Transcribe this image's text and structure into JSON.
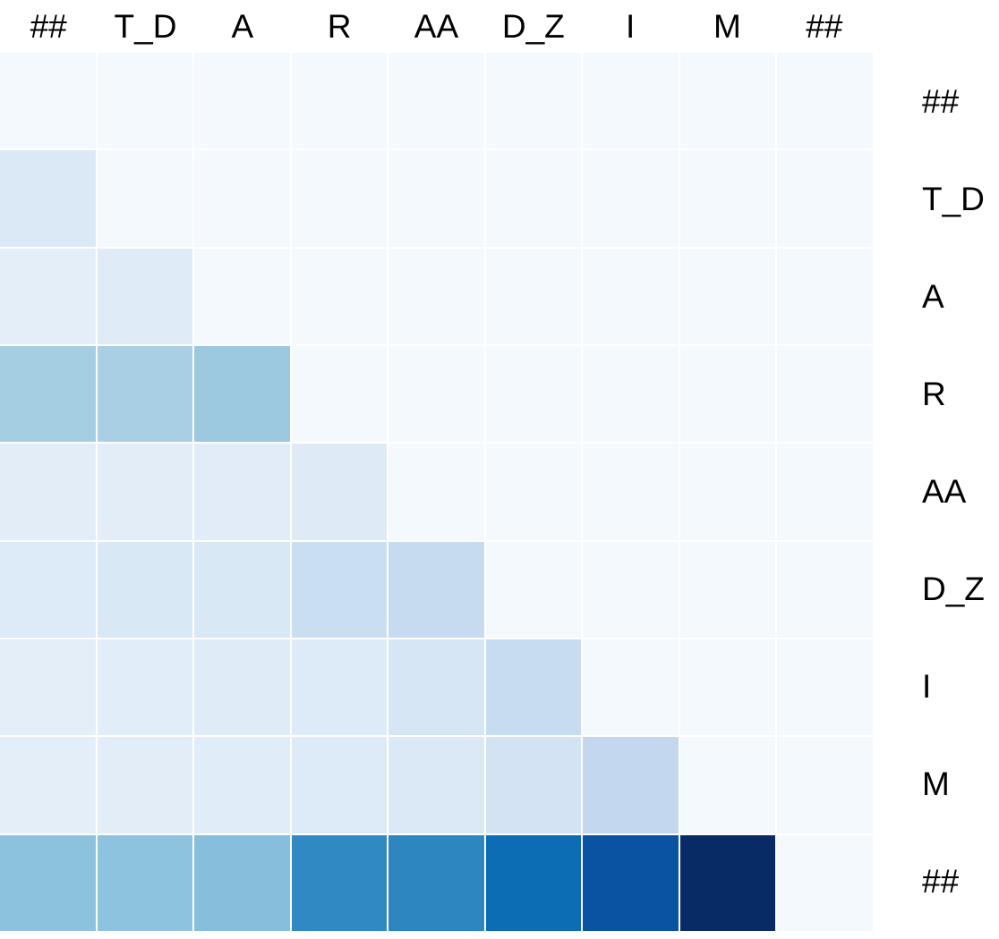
{
  "chart_data": {
    "type": "heatmap",
    "title": "",
    "xlabel": "",
    "ylabel": "",
    "colormap": "Blues",
    "value_range": [
      0,
      1
    ],
    "grid_line_color": "#ffffff",
    "background_color": "#ffffff",
    "label_text_color": "#000000",
    "x_labels": [
      "##",
      "T_D",
      "A",
      "R",
      "AA",
      "D_Z",
      "I",
      "M",
      "##"
    ],
    "y_labels": [
      "##",
      "T_D",
      "A",
      "R",
      "AA",
      "D_Z",
      "I",
      "M",
      "##"
    ],
    "rows": [
      {
        "label": "##",
        "values": [
          0.02,
          0.02,
          0.02,
          0.02,
          0.02,
          0.02,
          0.02,
          0.02,
          0.02
        ],
        "colors": [
          "#f4f9fe",
          "#f4f9fe",
          "#f4f9fe",
          "#f4f9fe",
          "#f4f9fe",
          "#f4f9fe",
          "#f4f9fe",
          "#f4f9fe",
          "#f4f9fe"
        ]
      },
      {
        "label": "T_D",
        "values": [
          0.13,
          0.02,
          0.02,
          0.02,
          0.02,
          0.02,
          0.02,
          0.02,
          0.02
        ],
        "colors": [
          "#dbe9f6",
          "#f4f9fe",
          "#f4f9fe",
          "#f4f9fe",
          "#f4f9fe",
          "#f4f9fe",
          "#f4f9fe",
          "#f4f9fe",
          "#f4f9fe"
        ]
      },
      {
        "label": "A",
        "values": [
          0.08,
          0.11,
          0.02,
          0.02,
          0.02,
          0.02,
          0.02,
          0.02,
          0.02
        ],
        "colors": [
          "#e4eef9",
          "#dfecf8",
          "#f4f9fe",
          "#f4f9fe",
          "#f4f9fe",
          "#f4f9fe",
          "#f4f9fe",
          "#f4f9fe",
          "#f4f9fe"
        ]
      },
      {
        "label": "R",
        "values": [
          0.33,
          0.32,
          0.36,
          0.02,
          0.02,
          0.02,
          0.02,
          0.02,
          0.02
        ],
        "colors": [
          "#a6cee3",
          "#a9cfe4",
          "#9cc8e0",
          "#f4f9fe",
          "#f4f9fe",
          "#f4f9fe",
          "#f4f9fe",
          "#f4f9fe",
          "#f4f9fe"
        ]
      },
      {
        "label": "AA",
        "values": [
          0.09,
          0.09,
          0.1,
          0.12,
          0.02,
          0.02,
          0.02,
          0.02,
          0.02
        ],
        "colors": [
          "#e3edf8",
          "#e3edf8",
          "#e1ecf8",
          "#deebf7",
          "#f4f9fe",
          "#f4f9fe",
          "#f4f9fe",
          "#f4f9fe",
          "#f4f9fe"
        ]
      },
      {
        "label": "D_Z",
        "values": [
          0.12,
          0.14,
          0.14,
          0.23,
          0.25,
          0.02,
          0.02,
          0.02,
          0.02
        ],
        "colors": [
          "#dcebf7",
          "#d9e8f5",
          "#d9e8f5",
          "#c9def1",
          "#c6dbef",
          "#f4f9fe",
          "#f4f9fe",
          "#f4f9fe",
          "#f4f9fe"
        ]
      },
      {
        "label": "I",
        "values": [
          0.09,
          0.1,
          0.11,
          0.12,
          0.16,
          0.25,
          0.02,
          0.02,
          0.02
        ],
        "colors": [
          "#e3eef9",
          "#e1edf8",
          "#dfecf7",
          "#dcebf7",
          "#d6e6f4",
          "#c7dcf0",
          "#f4f9fe",
          "#f4f9fe",
          "#f4f9fe"
        ]
      },
      {
        "label": "M",
        "values": [
          0.08,
          0.09,
          0.1,
          0.12,
          0.13,
          0.18,
          0.27,
          0.02,
          0.02
        ],
        "colors": [
          "#e4eef9",
          "#e2edf8",
          "#e0ecf8",
          "#dcebf7",
          "#dbe9f6",
          "#d3e3f3",
          "#c3d8ee",
          "#f4f9fe",
          "#f4f9fe"
        ]
      },
      {
        "label": "##",
        "values": [
          0.42,
          0.42,
          0.44,
          0.67,
          0.68,
          0.78,
          0.86,
          1.0,
          0.02
        ],
        "colors": [
          "#8dc2de",
          "#8ec3df",
          "#86bedc",
          "#3089c3",
          "#2e86c0",
          "#0c6db4",
          "#0953a2",
          "#082b66",
          "#f4f9fe"
        ]
      }
    ]
  }
}
